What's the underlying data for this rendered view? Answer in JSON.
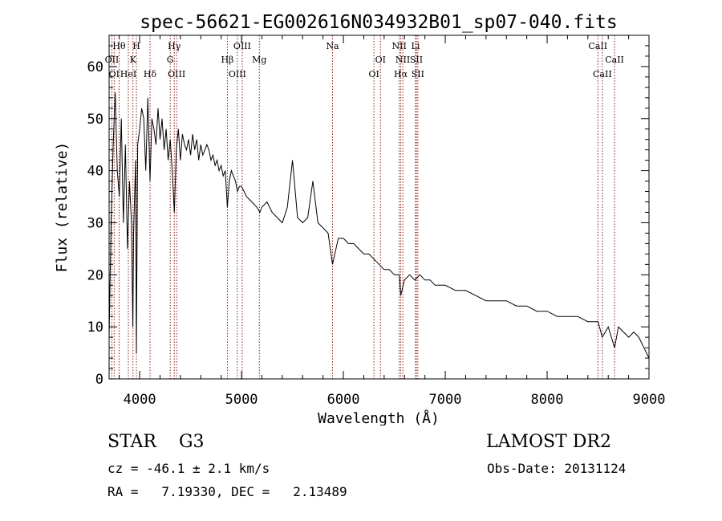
{
  "chart_data": {
    "type": "line",
    "title": "spec-56621-EG002616N034932B01_sp07-040.fits",
    "xlabel": "Wavelength (Å)",
    "ylabel": "Flux (relative)",
    "xlim": [
      3700,
      9000
    ],
    "ylim": [
      0,
      66
    ],
    "xticks": [
      4000,
      5000,
      6000,
      7000,
      8000,
      9000
    ],
    "yticks": [
      0,
      10,
      20,
      30,
      40,
      50,
      60
    ],
    "grid": false,
    "line_color": "#000000",
    "marker_color": "#8b1a1a",
    "series": [
      {
        "x": [
          3700,
          3720,
          3740,
          3760,
          3780,
          3800,
          3820,
          3840,
          3860,
          3880,
          3900,
          3920,
          3933,
          3940,
          3960,
          3968,
          3980,
          4000,
          4020,
          4040,
          4060,
          4080,
          4102,
          4120,
          4140,
          4160,
          4180,
          4200,
          4220,
          4240,
          4260,
          4280,
          4300,
          4320,
          4340,
          4360,
          4380,
          4400,
          4420,
          4440,
          4460,
          4480,
          4500,
          4520,
          4540,
          4560,
          4580,
          4600,
          4620,
          4640,
          4660,
          4680,
          4700,
          4720,
          4740,
          4760,
          4780,
          4800,
          4820,
          4840,
          4861,
          4880,
          4900,
          4920,
          4940,
          4960,
          4980,
          5000,
          5050,
          5100,
          5150,
          5180,
          5200,
          5250,
          5300,
          5350,
          5400,
          5450,
          5500,
          5550,
          5600,
          5650,
          5700,
          5750,
          5800,
          5850,
          5893,
          5950,
          6000,
          6050,
          6100,
          6150,
          6200,
          6250,
          6300,
          6350,
          6400,
          6450,
          6500,
          6550,
          6563,
          6600,
          6650,
          6700,
          6750,
          6800,
          6850,
          6900,
          6950,
          7000,
          7100,
          7200,
          7300,
          7400,
          7500,
          7600,
          7700,
          7800,
          7900,
          8000,
          8100,
          8200,
          8300,
          8400,
          8500,
          8542,
          8600,
          8662,
          8700,
          8750,
          8800,
          8850,
          8900,
          8950,
          9000
        ],
        "y": [
          8,
          30,
          45,
          55,
          40,
          35,
          50,
          30,
          45,
          25,
          38,
          30,
          10,
          28,
          42,
          5,
          45,
          48,
          52,
          50,
          40,
          54,
          38,
          50,
          48,
          45,
          52,
          46,
          50,
          44,
          48,
          42,
          46,
          40,
          32,
          44,
          48,
          42,
          47,
          45,
          44,
          46,
          43,
          47,
          44,
          46,
          42,
          45,
          43,
          44,
          45,
          44,
          42,
          43,
          41,
          42,
          40,
          41,
          39,
          40,
          33,
          38,
          40,
          39,
          38,
          36,
          37,
          37,
          35,
          34,
          33,
          32,
          33,
          34,
          32,
          31,
          30,
          33,
          42,
          31,
          30,
          31,
          38,
          30,
          29,
          28,
          22,
          27,
          27,
          26,
          26,
          25,
          24,
          24,
          23,
          22,
          21,
          21,
          20,
          20,
          16,
          19,
          20,
          19,
          20,
          19,
          19,
          18,
          18,
          18,
          17,
          17,
          16,
          15,
          15,
          15,
          14,
          14,
          13,
          13,
          12,
          12,
          12,
          11,
          11,
          8,
          10,
          6,
          10,
          9,
          8,
          9,
          8,
          6,
          4
        ]
      }
    ],
    "lines": [
      {
        "wl": 3727,
        "label": "OII",
        "row": 2
      },
      {
        "wl": 3750,
        "label": "OI",
        "row": 3
      },
      {
        "wl": 3798,
        "label": "Hθ",
        "row": 1
      },
      {
        "wl": 3889,
        "label": "HeI",
        "row": 3
      },
      {
        "wl": 3934,
        "label": "K",
        "row": 2
      },
      {
        "wl": 3968,
        "label": "H",
        "row": 1
      },
      {
        "wl": 4102,
        "label": "Hδ",
        "row": 3
      },
      {
        "wl": 4300,
        "label": "G",
        "row": 2
      },
      {
        "wl": 4340,
        "label": "Hγ",
        "row": 1
      },
      {
        "wl": 4363,
        "label": "OIII",
        "row": 3
      },
      {
        "wl": 4861,
        "label": "Hβ",
        "row": 2
      },
      {
        "wl": 4959,
        "label": "OIII",
        "row": 3
      },
      {
        "wl": 5007,
        "label": "OIII",
        "row": 1
      },
      {
        "wl": 5175,
        "label": "Mg",
        "row": 2
      },
      {
        "wl": 5893,
        "label": "Na",
        "row": 1
      },
      {
        "wl": 6300,
        "label": "OI",
        "row": 3
      },
      {
        "wl": 6364,
        "label": "OI",
        "row": 2
      },
      {
        "wl": 6548,
        "label": "NII",
        "row": 1
      },
      {
        "wl": 6563,
        "label": "Hα",
        "row": 3
      },
      {
        "wl": 6583,
        "label": "NII",
        "row": 2
      },
      {
        "wl": 6708,
        "label": "Li",
        "row": 1
      },
      {
        "wl": 6716,
        "label": "SII",
        "row": 2
      },
      {
        "wl": 6731,
        "label": "SII",
        "row": 3
      },
      {
        "wl": 8498,
        "label": "CaII",
        "row": 1
      },
      {
        "wl": 8542,
        "label": "CaII",
        "row": 3
      },
      {
        "wl": 8662,
        "label": "CaII",
        "row": 2
      }
    ]
  },
  "info": {
    "star_class": "STAR    G3",
    "survey": "LAMOST DR2",
    "cz": "cz = -46.1 ± 2.1 km/s",
    "obs_date": "Obs-Date: 20131124",
    "radec": "RA =   7.19330, DEC =   2.13489"
  }
}
